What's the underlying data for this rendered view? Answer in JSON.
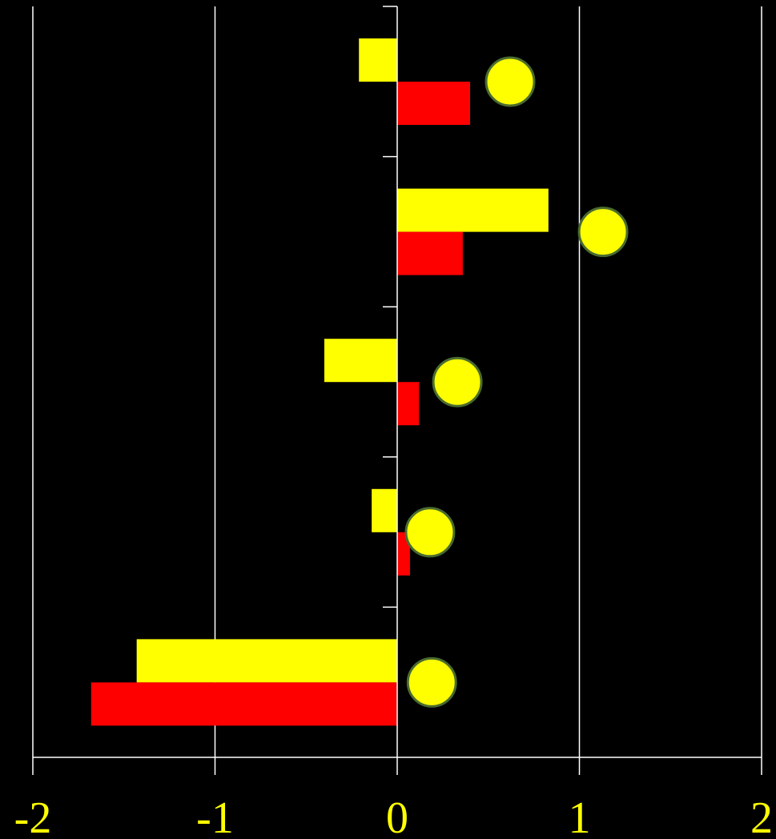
{
  "chart_data": {
    "type": "bar",
    "orientation": "horizontal",
    "xlim": [
      -2,
      2
    ],
    "xticks": [
      -2,
      -1,
      0,
      1,
      2
    ],
    "tick_labels": [
      "-2",
      "-1",
      "0",
      "1",
      "2"
    ],
    "grid": true,
    "legend": "none",
    "series": [
      {
        "color": "#ffff00",
        "values": [
          -0.21,
          0.83,
          -0.4,
          -0.14,
          -1.43
        ]
      },
      {
        "color": "#ff0000",
        "values": [
          0.4,
          0.36,
          0.12,
          0.07,
          -1.68
        ]
      }
    ],
    "markers": {
      "color": "#ffff00",
      "stroke": "#4a6b30",
      "values": [
        0.62,
        1.13,
        0.33,
        0.18,
        0.19
      ]
    },
    "colors": {
      "background": "#000000",
      "axis": "#ffffff",
      "tick_label": "#ffff00"
    }
  }
}
